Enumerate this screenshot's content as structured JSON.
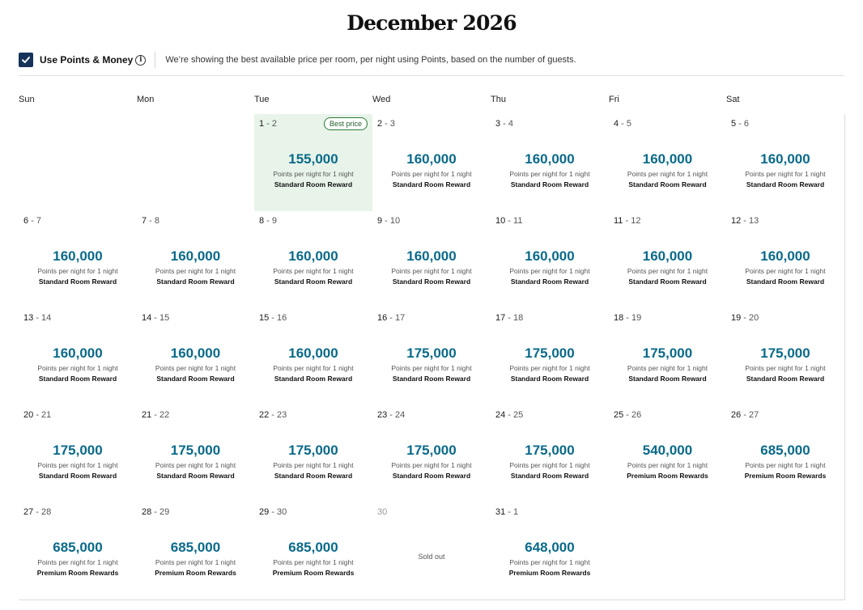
{
  "calendar": {
    "title": "December 2026",
    "options": {
      "checkbox_checked": true,
      "use_points_label": "Use Points & Money",
      "info_icon": "info-icon",
      "description": "We’re showing the best available price per room, per night using Points, based on the number of guests."
    },
    "weekdays": [
      "Sun",
      "Mon",
      "Tue",
      "Wed",
      "Thu",
      "Fri",
      "Sat"
    ],
    "best_price_label": "Best price",
    "per_night_label": "Points per night for 1 night",
    "sold_out_label": "Sold out",
    "accent_color": "#0a6a8a",
    "best_bg_color": "#e8f4e9",
    "weeks": [
      [
        null,
        null,
        {
          "start": "1",
          "end": "2",
          "points": "155,000",
          "room": "Standard Room Reward",
          "best": true
        },
        {
          "start": "2",
          "end": "3",
          "points": "160,000",
          "room": "Standard Room Reward"
        },
        {
          "start": "3",
          "end": "4",
          "points": "160,000",
          "room": "Standard Room Reward"
        },
        {
          "start": "4",
          "end": "5",
          "points": "160,000",
          "room": "Standard Room Reward"
        },
        {
          "start": "5",
          "end": "6",
          "points": "160,000",
          "room": "Standard Room Reward"
        }
      ],
      [
        {
          "start": "6",
          "end": "7",
          "points": "160,000",
          "room": "Standard Room Reward"
        },
        {
          "start": "7",
          "end": "8",
          "points": "160,000",
          "room": "Standard Room Reward"
        },
        {
          "start": "8",
          "end": "9",
          "points": "160,000",
          "room": "Standard Room Reward"
        },
        {
          "start": "9",
          "end": "10",
          "points": "160,000",
          "room": "Standard Room Reward"
        },
        {
          "start": "10",
          "end": "11",
          "points": "160,000",
          "room": "Standard Room Reward"
        },
        {
          "start": "11",
          "end": "12",
          "points": "160,000",
          "room": "Standard Room Reward"
        },
        {
          "start": "12",
          "end": "13",
          "points": "160,000",
          "room": "Standard Room Reward"
        }
      ],
      [
        {
          "start": "13",
          "end": "14",
          "points": "160,000",
          "room": "Standard Room Reward"
        },
        {
          "start": "14",
          "end": "15",
          "points": "160,000",
          "room": "Standard Room Reward"
        },
        {
          "start": "15",
          "end": "16",
          "points": "160,000",
          "room": "Standard Room Reward"
        },
        {
          "start": "16",
          "end": "17",
          "points": "175,000",
          "room": "Standard Room Reward"
        },
        {
          "start": "17",
          "end": "18",
          "points": "175,000",
          "room": "Standard Room Reward"
        },
        {
          "start": "18",
          "end": "19",
          "points": "175,000",
          "room": "Standard Room Reward"
        },
        {
          "start": "19",
          "end": "20",
          "points": "175,000",
          "room": "Standard Room Reward"
        }
      ],
      [
        {
          "start": "20",
          "end": "21",
          "points": "175,000",
          "room": "Standard Room Reward"
        },
        {
          "start": "21",
          "end": "22",
          "points": "175,000",
          "room": "Standard Room Reward"
        },
        {
          "start": "22",
          "end": "23",
          "points": "175,000",
          "room": "Standard Room Reward"
        },
        {
          "start": "23",
          "end": "24",
          "points": "175,000",
          "room": "Standard Room Reward"
        },
        {
          "start": "24",
          "end": "25",
          "points": "175,000",
          "room": "Standard Room Reward"
        },
        {
          "start": "25",
          "end": "26",
          "points": "540,000",
          "room": "Premium Room Rewards"
        },
        {
          "start": "26",
          "end": "27",
          "points": "685,000",
          "room": "Premium Room Rewards"
        }
      ],
      [
        {
          "start": "27",
          "end": "28",
          "points": "685,000",
          "room": "Premium Room Rewards"
        },
        {
          "start": "28",
          "end": "29",
          "points": "685,000",
          "room": "Premium Room Rewards"
        },
        {
          "start": "29",
          "end": "30",
          "points": "685,000",
          "room": "Premium Room Rewards"
        },
        {
          "start": "30",
          "sold_out": true
        },
        {
          "start": "31",
          "end": "1",
          "points": "648,000",
          "room": "Premium Room Rewards"
        },
        null,
        null
      ]
    ]
  }
}
